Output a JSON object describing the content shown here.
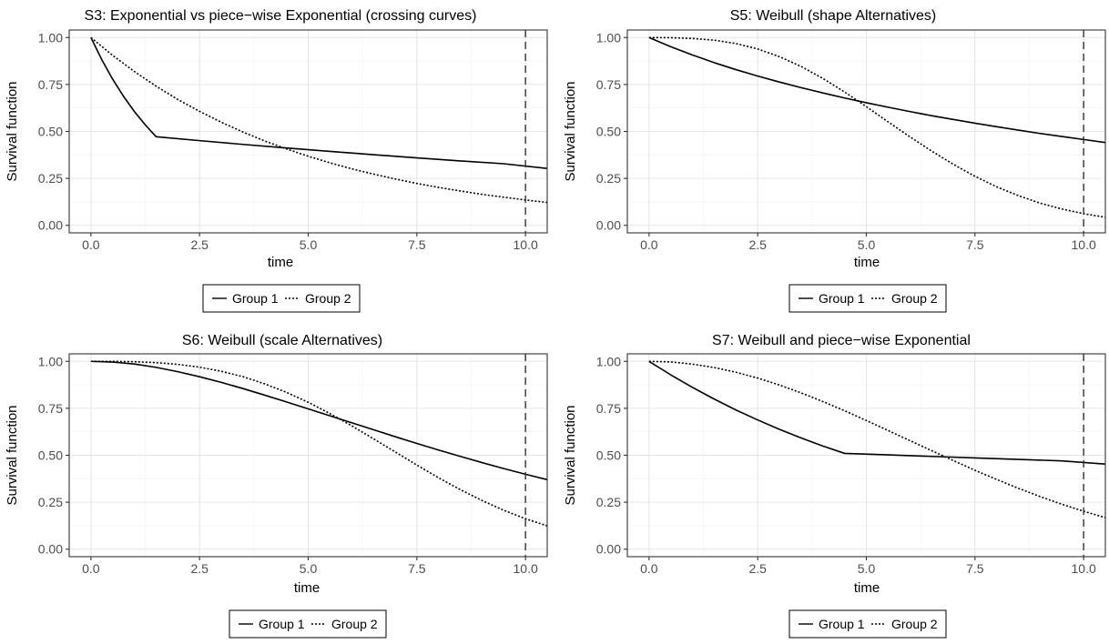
{
  "chart_data": [
    {
      "type": "line",
      "title": "S3: Exponential vs piece−wise Exponential (crossing curves)",
      "xlabel": "time",
      "ylabel": "Survival function",
      "xlim": [
        -0.5,
        10.5
      ],
      "ylim": [
        -0.04,
        1.04
      ],
      "x_ticks": [
        "0.0",
        "2.5",
        "5.0",
        "7.5",
        "10.0"
      ],
      "y_ticks": [
        "0.00",
        "0.25",
        "0.50",
        "0.75",
        "1.00"
      ],
      "grid": true,
      "vline_x": 10,
      "legend": {
        "position": "bottom",
        "boxed": true
      },
      "series": [
        {
          "name": "Group 1",
          "linestyle": "solid",
          "x": [
            0,
            0.25,
            0.5,
            0.75,
            1.0,
            1.25,
            1.5,
            2.5,
            3.5,
            4.5,
            5.5,
            6.5,
            7.5,
            8.5,
            9.5,
            10.5
          ],
          "y": [
            1.0,
            0.882,
            0.778,
            0.687,
            0.606,
            0.535,
            0.472,
            0.451,
            0.431,
            0.412,
            0.394,
            0.376,
            0.359,
            0.343,
            0.328,
            0.303
          ]
        },
        {
          "name": "Group 2",
          "linestyle": "dotted",
          "x": [
            0,
            0.5,
            1.0,
            1.5,
            2.0,
            2.5,
            3.0,
            3.5,
            4.0,
            4.5,
            5.0,
            5.5,
            6.0,
            6.5,
            7.0,
            7.5,
            8.0,
            8.5,
            9.0,
            9.5,
            10.0,
            10.5
          ],
          "y": [
            1.0,
            0.905,
            0.819,
            0.741,
            0.67,
            0.607,
            0.549,
            0.497,
            0.449,
            0.407,
            0.368,
            0.333,
            0.301,
            0.273,
            0.247,
            0.223,
            0.202,
            0.183,
            0.165,
            0.15,
            0.135,
            0.122
          ]
        }
      ]
    },
    {
      "type": "line",
      "title": "S5: Weibull (shape Alternatives)",
      "xlabel": "time",
      "ylabel": "Survival function",
      "xlim": [
        -0.5,
        10.5
      ],
      "ylim": [
        -0.04,
        1.04
      ],
      "x_ticks": [
        "0.0",
        "2.5",
        "5.0",
        "7.5",
        "10.0"
      ],
      "y_ticks": [
        "0.00",
        "0.25",
        "0.50",
        "0.75",
        "1.00"
      ],
      "grid": true,
      "vline_x": 10,
      "legend": {
        "position": "bottom",
        "boxed": true
      },
      "series": [
        {
          "name": "Group 1",
          "linestyle": "solid",
          "x": [
            0,
            0.5,
            1.0,
            1.5,
            2.0,
            2.5,
            3.0,
            3.5,
            4.0,
            4.5,
            5.0,
            5.5,
            6.0,
            6.5,
            7.0,
            7.5,
            8.0,
            8.5,
            9.0,
            9.5,
            10.0,
            10.5
          ],
          "y": [
            1.0,
            0.951,
            0.907,
            0.866,
            0.829,
            0.795,
            0.763,
            0.733,
            0.705,
            0.678,
            0.653,
            0.629,
            0.606,
            0.584,
            0.564,
            0.544,
            0.525,
            0.507,
            0.489,
            0.473,
            0.457,
            0.441
          ]
        },
        {
          "name": "Group 2",
          "linestyle": "dotted",
          "x": [
            0,
            0.5,
            1.0,
            1.5,
            2.0,
            2.5,
            3.0,
            3.5,
            4.0,
            4.5,
            5.0,
            5.5,
            6.0,
            6.5,
            7.0,
            7.5,
            8.0,
            8.5,
            9.0,
            9.5,
            10.0,
            10.5
          ],
          "y": [
            1.0,
            0.999,
            0.995,
            0.986,
            0.968,
            0.939,
            0.898,
            0.846,
            0.782,
            0.71,
            0.632,
            0.551,
            0.472,
            0.396,
            0.325,
            0.261,
            0.205,
            0.158,
            0.118,
            0.087,
            0.062,
            0.043
          ]
        }
      ]
    },
    {
      "type": "line",
      "title": "S6: Weibull (scale Alternatives)",
      "xlabel": "time",
      "ylabel": "Survival function",
      "xlim": [
        -0.5,
        10.5
      ],
      "ylim": [
        -0.04,
        1.04
      ],
      "x_ticks": [
        "0.0",
        "2.5",
        "5.0",
        "7.5",
        "10.0"
      ],
      "y_ticks": [
        "0.00",
        "0.25",
        "0.50",
        "0.75",
        "1.00"
      ],
      "grid": true,
      "vline_x": 10,
      "legend": {
        "position": "bottom",
        "boxed": true
      },
      "series": [
        {
          "name": "Group 1",
          "linestyle": "solid",
          "x": [
            0,
            0.5,
            1.0,
            1.5,
            2.0,
            2.5,
            3.0,
            3.5,
            4.0,
            4.5,
            5.0,
            5.5,
            6.0,
            6.5,
            7.0,
            7.5,
            8.0,
            8.5,
            9.0,
            9.5,
            10.0,
            10.5
          ],
          "y": [
            1.0,
            0.996,
            0.986,
            0.968,
            0.945,
            0.918,
            0.888,
            0.855,
            0.82,
            0.784,
            0.747,
            0.71,
            0.673,
            0.636,
            0.599,
            0.563,
            0.528,
            0.494,
            0.461,
            0.429,
            0.399,
            0.37
          ]
        },
        {
          "name": "Group 2",
          "linestyle": "dotted",
          "x": [
            0,
            0.5,
            1.0,
            1.5,
            2.0,
            2.5,
            3.0,
            3.5,
            4.0,
            4.5,
            5.0,
            5.5,
            6.0,
            6.5,
            7.0,
            7.5,
            8.0,
            8.5,
            9.0,
            9.5,
            10.0,
            10.5
          ],
          "y": [
            1.0,
            1.0,
            0.998,
            0.993,
            0.984,
            0.969,
            0.947,
            0.918,
            0.88,
            0.835,
            0.782,
            0.722,
            0.657,
            0.588,
            0.518,
            0.448,
            0.38,
            0.317,
            0.259,
            0.207,
            0.162,
            0.124
          ]
        }
      ]
    },
    {
      "type": "line",
      "title": "S7: Weibull and piece−wise Exponential",
      "xlabel": "time",
      "ylabel": "Survival function",
      "xlim": [
        -0.5,
        10.5
      ],
      "ylim": [
        -0.04,
        1.04
      ],
      "x_ticks": [
        "0.0",
        "2.5",
        "5.0",
        "7.5",
        "10.0"
      ],
      "y_ticks": [
        "0.00",
        "0.25",
        "0.50",
        "0.75",
        "1.00"
      ],
      "grid": true,
      "vline_x": 10,
      "legend": {
        "position": "bottom",
        "boxed": true
      },
      "series": [
        {
          "name": "Group 1",
          "linestyle": "solid",
          "x": [
            0,
            0.5,
            1.0,
            1.5,
            2.0,
            2.5,
            3.0,
            3.5,
            4.0,
            4.5,
            5.5,
            6.5,
            7.5,
            8.5,
            9.5,
            10.5
          ],
          "y": [
            1.0,
            0.928,
            0.861,
            0.799,
            0.741,
            0.688,
            0.638,
            0.592,
            0.549,
            0.51,
            0.502,
            0.494,
            0.486,
            0.478,
            0.47,
            0.453
          ]
        },
        {
          "name": "Group 2",
          "linestyle": "dotted",
          "x": [
            0,
            0.5,
            1.0,
            1.5,
            2.0,
            2.5,
            3.0,
            3.5,
            4.0,
            4.5,
            5.0,
            5.5,
            6.0,
            6.5,
            7.0,
            7.5,
            8.0,
            8.5,
            9.0,
            9.5,
            10.0,
            10.5
          ],
          "y": [
            1.0,
            0.997,
            0.985,
            0.967,
            0.942,
            0.911,
            0.874,
            0.832,
            0.786,
            0.737,
            0.685,
            0.632,
            0.578,
            0.525,
            0.472,
            0.42,
            0.371,
            0.324,
            0.28,
            0.239,
            0.202,
            0.168
          ]
        }
      ]
    }
  ]
}
